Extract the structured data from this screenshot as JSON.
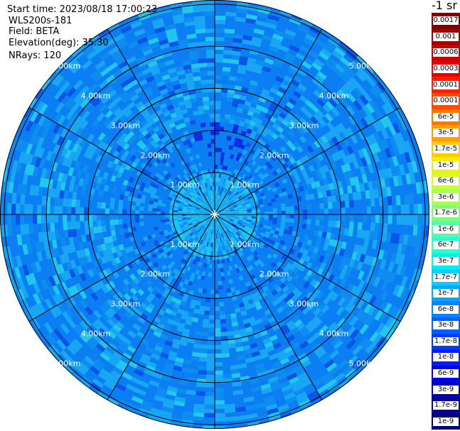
{
  "header": {
    "start_time_label": "Start time:",
    "start_time_value": "2023/08/18 17:00:23",
    "instrument": "WLS200s-181",
    "field_label": "Field:",
    "field_value": "BETA",
    "elevation_label": "Elevation(deg):",
    "elevation_value": "35.30",
    "nrays_label": "NRays:",
    "nrays_value": "120"
  },
  "colorbar": {
    "unit_text": "-1 sr",
    "labels": [
      "0.0017",
      "0.001",
      "0.0006",
      "0.0003",
      "0.00017",
      "0.0001",
      "6e-5",
      "3e-5",
      "1.7e-5",
      "1e-5",
      "6e-6",
      "3e-6",
      "1.7e-6",
      "1e-6",
      "6e-7",
      "3e-7",
      "1.7e-7",
      "1e-7",
      "6e-8",
      "3e-8",
      "1.7e-8",
      "1e-8",
      "6e-9",
      "3e-9",
      "1.7e-9",
      "1e-9"
    ],
    "colors": [
      "#7f0000",
      "#a50000",
      "#c80000",
      "#e60000",
      "#ff1e00",
      "#ff4a00",
      "#ff7600",
      "#ffa000",
      "#ffcc00",
      "#f2f000",
      "#d2ff28",
      "#a8ff50",
      "#7cff7c",
      "#50ffa8",
      "#28ffd2",
      "#00f0f2",
      "#00d0ff",
      "#00a8ff",
      "#0084ff",
      "#0060ff",
      "#003cff",
      "#001cff",
      "#0000e6",
      "#0000c0",
      "#00009a",
      "#000078"
    ]
  },
  "range_rings": {
    "labels": [
      "1.00km",
      "2.00km",
      "3.00km",
      "4.00km",
      "5.00km"
    ]
  },
  "scan": {
    "rays": 120,
    "colors": {
      "base": "#0a7ef2",
      "light": "#19a6f5",
      "mid": "#0f8cf0",
      "cyan": "#22c6ef",
      "dark": "#0b55e6",
      "deep": "#0a2ee0"
    }
  }
}
